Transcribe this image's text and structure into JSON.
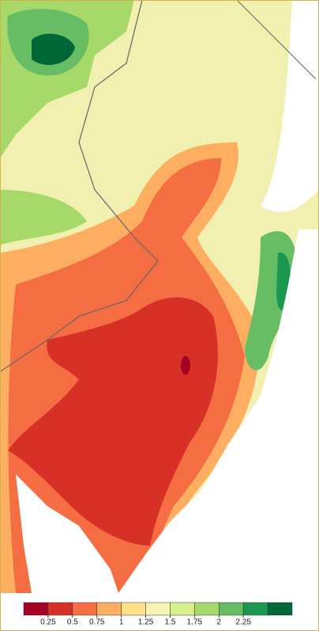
{
  "legend": {
    "colors": [
      "#a50026",
      "#d73027",
      "#f46d43",
      "#fdae61",
      "#fee08b",
      "#f7f4b4",
      "#d9ef8b",
      "#a6d96a",
      "#66bd63",
      "#1a9850",
      "#006837"
    ],
    "ticks": [
      0.25,
      0.5,
      0.75,
      1,
      1.25,
      1.5,
      1.75,
      2,
      2.25
    ]
  }
}
